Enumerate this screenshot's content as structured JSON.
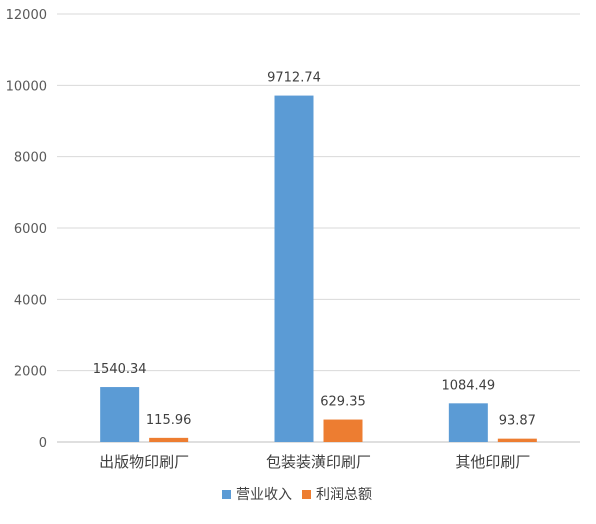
{
  "chart_data": {
    "type": "bar",
    "categories": [
      "出版物印刷厂",
      "包装装潢印刷厂",
      "其他印刷厂"
    ],
    "series": [
      {
        "name": "营业收入",
        "color": "#5B9BD5",
        "values": [
          1540.34,
          9712.74,
          1084.49
        ],
        "labels": [
          "1540.34",
          "9712.74",
          "1084.49"
        ]
      },
      {
        "name": "利润总额",
        "color": "#ED7D31",
        "values": [
          115.96,
          629.35,
          93.87
        ],
        "labels": [
          "115.96",
          "629.35",
          "93.87"
        ]
      }
    ],
    "ylim": [
      0,
      12000
    ],
    "yticks": [
      "0",
      "2000",
      "4000",
      "6000",
      "8000",
      "10000",
      "12000"
    ],
    "grid": true,
    "legend_position": "bottom"
  }
}
